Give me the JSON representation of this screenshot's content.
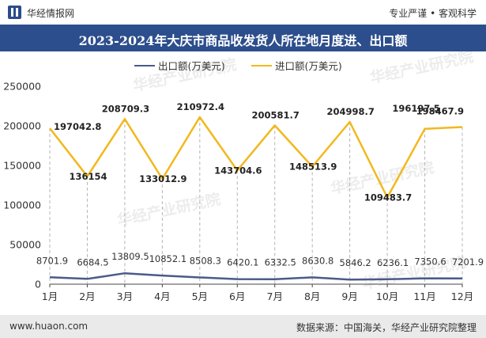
{
  "header": {
    "brand": "华经情报网",
    "slogan": "专业严谨 • 客观科学"
  },
  "chart_data": {
    "type": "line",
    "title": "2023-2024年大庆市商品收发货人所在地月度进、出口额",
    "categories": [
      "1月",
      "2月",
      "3月",
      "4月",
      "5月",
      "6月",
      "7月",
      "8月",
      "9月",
      "10月",
      "11月",
      "12月"
    ],
    "series": [
      {
        "name": "出口额(万美元)",
        "color": "#4a5b8a",
        "values": [
          8701.9,
          6684.5,
          13809.5,
          10852.1,
          8508.3,
          6420.1,
          6332.5,
          8630.8,
          5846.2,
          6236.1,
          7350.6,
          7201.9
        ],
        "labels": [
          "8701.9",
          "6684.5",
          "13809.5",
          "10852.1",
          "8508.3",
          "6420.1",
          "6332.5",
          "8630.8",
          "5846.2",
          "6236.1",
          "7350.6",
          "7201.9"
        ]
      },
      {
        "name": "进口额(万美元)",
        "color": "#f2b81c",
        "values": [
          197042.8,
          136154,
          208709.3,
          133012.9,
          210972.4,
          143704.6,
          200581.7,
          148513.9,
          204998.7,
          109483.7,
          196197.5,
          198467.9
        ],
        "labels": [
          "197042.8",
          "136154",
          "208709.3",
          "133012.9",
          "210972.4",
          "143704.6",
          "200581.7",
          "148513.9",
          "204998.7",
          "109483.7",
          "196197.5",
          "198467.9"
        ]
      }
    ],
    "yticks": [
      "0",
      "50000",
      "100000",
      "150000",
      "200000",
      "250000"
    ],
    "ylim": [
      0,
      250000
    ],
    "grid": false,
    "legend_position": "top"
  },
  "watermark": "华经产业研究院",
  "footer": {
    "website": "www.huaon.com",
    "source": "数据来源：中国海关，华经产业研究院整理"
  }
}
